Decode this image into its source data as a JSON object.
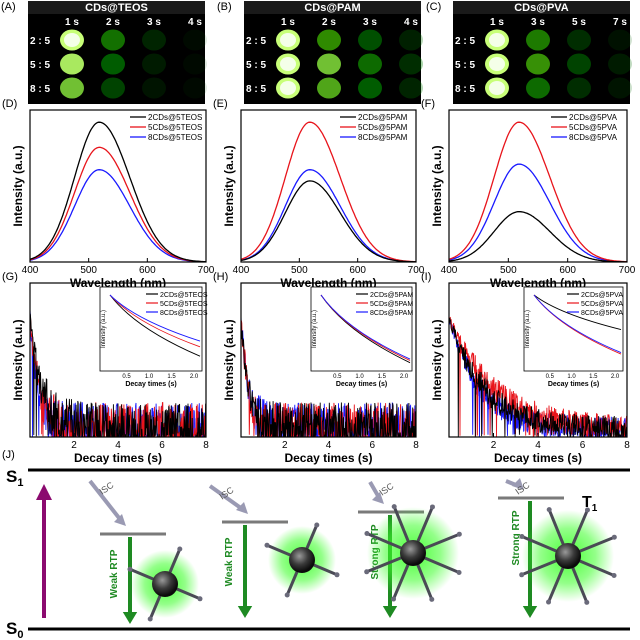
{
  "photos": [
    {
      "panel": "(A)",
      "title": "CDs@TEOS",
      "times": [
        "1 s",
        "2 s",
        "3 s",
        "4 s"
      ],
      "ratios": [
        "2 : 5",
        "5 : 5",
        "8 : 5"
      ],
      "brightness": [
        [
          1.0,
          0.62,
          0.3,
          0.1
        ],
        [
          0.95,
          0.55,
          0.25,
          0.08
        ],
        [
          0.85,
          0.45,
          0.2,
          0.06
        ]
      ]
    },
    {
      "panel": "(B)",
      "title": "CDs@PAM",
      "times": [
        "1 s",
        "2 s",
        "3 s",
        "4 s"
      ],
      "ratios": [
        "2 : 5",
        "5 : 5",
        "8 : 5"
      ],
      "brightness": [
        [
          1.0,
          0.7,
          0.5,
          0.28
        ],
        [
          1.0,
          0.85,
          0.6,
          0.35
        ],
        [
          1.0,
          0.78,
          0.55,
          0.3
        ]
      ]
    },
    {
      "panel": "(C)",
      "title": "CDs@PVA",
      "times": [
        "1 s",
        "3 s",
        "5 s",
        "7 s"
      ],
      "ratios": [
        "2 : 5",
        "5 : 5",
        "8 : 5"
      ],
      "brightness": [
        [
          1.0,
          0.65,
          0.35,
          0.18
        ],
        [
          1.0,
          0.72,
          0.45,
          0.25
        ],
        [
          1.0,
          0.6,
          0.35,
          0.2
        ]
      ]
    }
  ],
  "chart_data": [
    {
      "panel": "(D)",
      "type": "line",
      "xlabel": "Wavelength (nm)",
      "ylabel": "Intensity (a.u.)",
      "xlim": [
        400,
        700
      ],
      "xticks": [
        400,
        500,
        600,
        700
      ],
      "peak_x": 518,
      "series": [
        {
          "name": "2CDs@5TEOS",
          "color": "#000000",
          "peak": 1.0
        },
        {
          "name": "5CDs@5TEOS",
          "color": "#e8141b",
          "peak": 0.82
        },
        {
          "name": "8CDs@5TEOS",
          "color": "#1a1aff",
          "peak": 0.66
        }
      ]
    },
    {
      "panel": "(E)",
      "type": "line",
      "xlabel": "Wavelength (nm)",
      "ylabel": "Intensity (a.u.)",
      "xlim": [
        400,
        700
      ],
      "xticks": [
        400,
        500,
        600,
        700
      ],
      "peak_x": 518,
      "series": [
        {
          "name": "2CDs@5PAM",
          "color": "#000000",
          "peak": 0.58
        },
        {
          "name": "5CDs@5PAM",
          "color": "#e8141b",
          "peak": 1.0
        },
        {
          "name": "8CDs@5PAM",
          "color": "#1a1aff",
          "peak": 0.66
        }
      ]
    },
    {
      "panel": "(F)",
      "type": "line",
      "xlabel": "Wavelength (nm)",
      "ylabel": "Intensity (a.u.)",
      "xlim": [
        400,
        700
      ],
      "xticks": [
        400,
        500,
        600,
        700
      ],
      "peak_x": 518,
      "series": [
        {
          "name": "2CDs@5PVA",
          "color": "#000000",
          "peak": 0.36
        },
        {
          "name": "5CDs@5PVA",
          "color": "#e8141b",
          "peak": 1.0
        },
        {
          "name": "8CDs@5PVA",
          "color": "#1a1aff",
          "peak": 0.7
        }
      ]
    },
    {
      "panel": "(G)",
      "type": "line",
      "xlabel": "Decay times (s)",
      "ylabel": "Intensity (a.u.)",
      "xlim": [
        0,
        8
      ],
      "xticks": [
        2,
        4,
        6,
        8
      ],
      "tau": [
        0.55,
        0.45,
        0.38
      ],
      "noise": 0.17,
      "series": [
        {
          "name": "2CDs@5TEOS",
          "color": "#000000"
        },
        {
          "name": "5CDs@5TEOS",
          "color": "#e8141b"
        },
        {
          "name": "8CDs@5TEOS",
          "color": "#1a1aff"
        }
      ],
      "inset": {
        "xlabel": "Decay times (s)",
        "ylabel": "Intensity (a.u.)",
        "xticks": [
          "0.5",
          "1.0",
          "1.5",
          "2.0"
        ],
        "ends": [
          0.15,
          0.28,
          0.36
        ]
      }
    },
    {
      "panel": "(H)",
      "type": "line",
      "xlabel": "Decay times (s)",
      "ylabel": "Intensity (a.u.)",
      "xlim": [
        0,
        8
      ],
      "xticks": [
        2,
        4,
        6,
        8
      ],
      "tau": [
        0.35,
        0.35,
        0.35
      ],
      "noise": 0.17,
      "series": [
        {
          "name": "2CDs@5PAM",
          "color": "#000000"
        },
        {
          "name": "5CDs@5PAM",
          "color": "#e8141b"
        },
        {
          "name": "8CDs@5PAM",
          "color": "#1a1aff"
        }
      ],
      "inset": {
        "xlabel": "Decay times (s)",
        "ylabel": "Intensity (a.u.)",
        "xticks": [
          "0.5",
          "1.0",
          "1.5",
          "2.0"
        ],
        "ends": [
          0.06,
          0.09,
          0.11
        ]
      }
    },
    {
      "panel": "(I)",
      "type": "line",
      "xlabel": "Decay times (s)",
      "ylabel": "Intensity (a.u.)",
      "xlim": [
        0,
        8
      ],
      "xticks": [
        2,
        4,
        6,
        8
      ],
      "tau": [
        1.6,
        2.0,
        1.45
      ],
      "noise": 0.08,
      "series": [
        {
          "name": "2CDs@5PVA",
          "color": "#000000"
        },
        {
          "name": "5CDs@5PVA",
          "color": "#e8141b"
        },
        {
          "name": "8CDs@5PVA",
          "color": "#1a1aff"
        }
      ],
      "inset": {
        "xlabel": "Decay times (s)",
        "ylabel": "Intensity (a.u.)",
        "xticks": [
          "0.5",
          "1.0",
          "1.5",
          "2.0"
        ],
        "ends": [
          0.52,
          0.18,
          0.2
        ]
      }
    }
  ],
  "scheme": {
    "panel": "(J)",
    "s1": "S",
    "s1_sub": "1",
    "s0": "S",
    "s0_sub": "0",
    "t1": "T",
    "t1_sub": "1",
    "isc": "ISC",
    "labels": [
      "Weak RTP",
      "Weak RTP",
      "Strong RTP",
      "Strong RTP"
    ],
    "colors": {
      "excitation": "#8b0a6f",
      "emission": "#1e8a22",
      "isc": "#9a9ab3",
      "level": "#7a7a7a",
      "glow": "#3dff2a"
    }
  }
}
